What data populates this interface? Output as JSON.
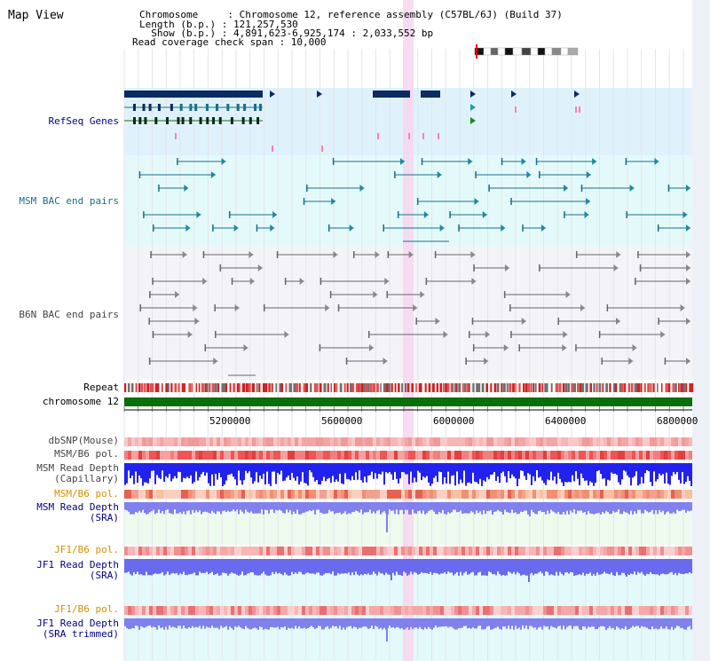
{
  "title": "Map View",
  "header": {
    "lines": [
      "Chromosome     : Chromosome 12, reference assembly (C57BL/6J) (Build 37)",
      "Length (b.p.) : 121,257,530",
      "  Show (b.p.) : 4,891,623-6,925,174 : 2,033,552 bp",
      "Read coverage check span : 10,000"
    ]
  },
  "tracks": {
    "refseq": "RefSeq Genes",
    "msm_bac": "MSM BAC end pairs",
    "b6n_bac": "B6N BAC end pairs",
    "repeat": "Repeat",
    "chromosome": "chromosome 12",
    "dbsnp": "dbSNP(Mouse)",
    "msm_pol1": "MSM/B6 pol.",
    "msm_depth_cap_1": "MSM Read Depth",
    "msm_depth_cap_2": "(Capillary)",
    "msm_pol2": "MSM/B6 pol.",
    "msm_depth_sra_1": "MSM Read Depth",
    "msm_depth_sra_2": "(SRA)",
    "jf1_pol1": "JF1/B6 pol.",
    "jf1_depth_1": "JF1 Read Depth",
    "jf1_depth_2": "(SRA)",
    "jf1_pol2": "JF1/B6 pol.",
    "jf1_trim_1": "JF1 Read Depth",
    "jf1_trim_2": "(SRA trimmed)"
  },
  "axis": {
    "ticks": [
      "5200000",
      "5600000",
      "6000000",
      "6400000",
      "6800000"
    ]
  },
  "colors": {
    "refseq_bg": "#dff2fb",
    "msm_bac_bg": "#e4fafa",
    "b6n_bac_bg": "#f4f4f8",
    "highlight": "#f7d6ee",
    "chromosome_bar": "#0a6e0a",
    "label_navy": "#000080",
    "label_teal": "#1a6e88",
    "label_orange": "#d99000"
  }
}
